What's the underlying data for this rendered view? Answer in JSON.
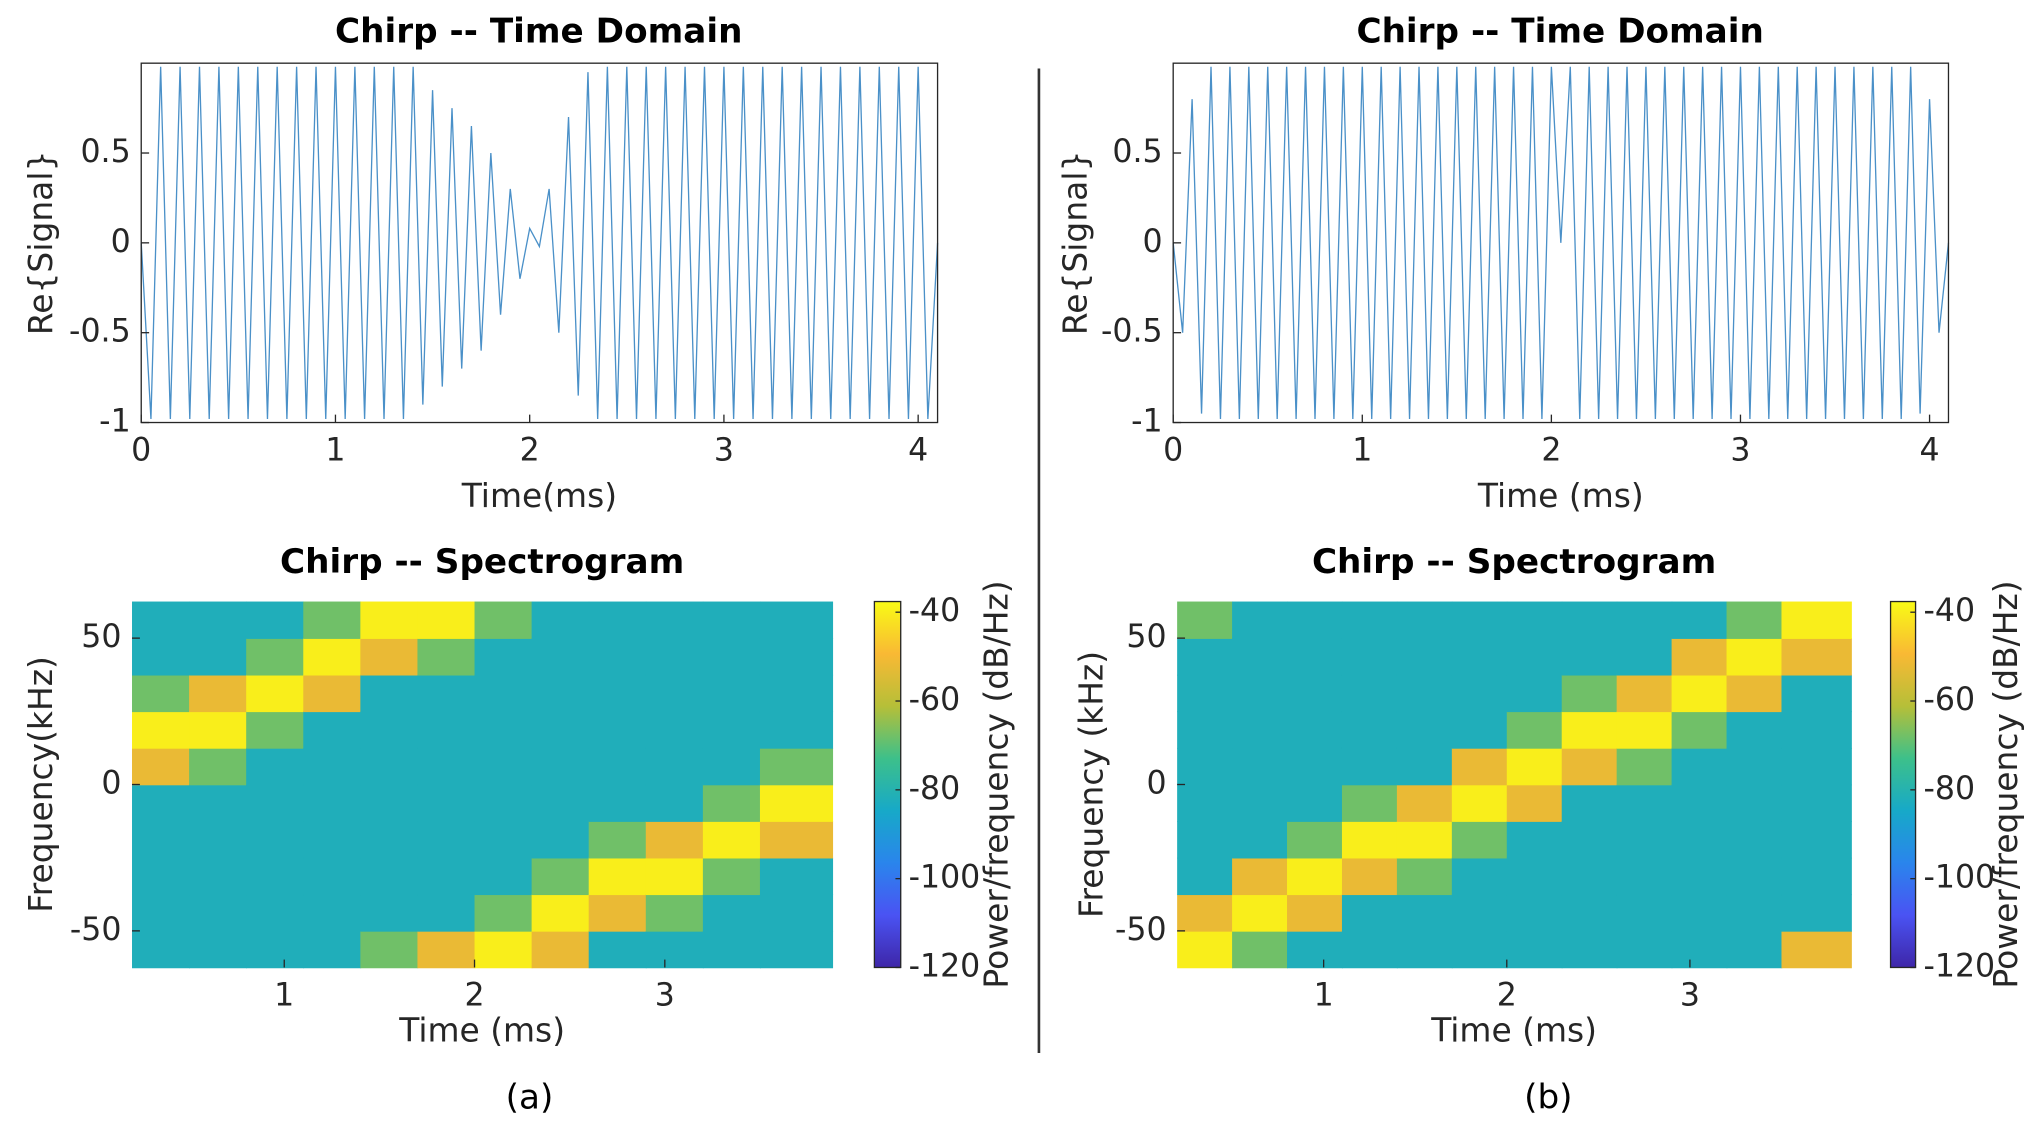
{
  "captions": [
    "(a)",
    "(b)"
  ],
  "chart_data": [
    {
      "type": "line",
      "title": "Chirp -- Time Domain",
      "x_label": "Time(ms)",
      "y_label": "Re{Signal}",
      "xlim": [
        0,
        4.1
      ],
      "ylim": [
        -1,
        1
      ],
      "xticks": [
        0,
        1,
        2,
        3,
        4
      ],
      "yticks": [
        -1,
        -0.5,
        0,
        0.5
      ],
      "x": [
        0,
        0.05,
        0.1,
        0.15,
        0.2,
        0.25,
        0.3,
        0.35,
        0.4,
        0.45,
        0.5,
        0.55,
        0.6,
        0.65,
        0.7,
        0.75,
        0.8,
        0.85,
        0.9,
        0.95,
        1,
        1.05,
        1.1,
        1.15,
        1.2,
        1.25,
        1.3,
        1.35,
        1.4,
        1.45,
        1.5,
        1.55,
        1.6,
        1.65,
        1.7,
        1.75,
        1.8,
        1.85,
        1.9,
        1.95,
        2,
        2.05,
        2.1,
        2.15,
        2.2,
        2.25,
        2.3,
        2.35,
        2.4,
        2.45,
        2.5,
        2.55,
        2.6,
        2.65,
        2.7,
        2.75,
        2.8,
        2.85,
        2.9,
        2.95,
        3,
        3.05,
        3.1,
        3.15,
        3.2,
        3.25,
        3.3,
        3.35,
        3.4,
        3.45,
        3.5,
        3.55,
        3.6,
        3.65,
        3.7,
        3.75,
        3.8,
        3.85,
        3.9,
        3.95,
        4,
        4.05,
        4.1
      ],
      "series": [
        {
          "color": "#4a90c8",
          "values": [
            0,
            -0.98,
            0.98,
            -0.98,
            0.98,
            -0.98,
            0.98,
            -0.98,
            0.98,
            -0.98,
            0.98,
            -0.98,
            0.98,
            -0.98,
            0.98,
            -0.98,
            0.98,
            -0.98,
            0.98,
            -0.98,
            0.98,
            -0.98,
            0.98,
            -0.98,
            0.98,
            -0.98,
            0.98,
            -0.98,
            0.98,
            -0.9,
            0.85,
            -0.8,
            0.75,
            -0.7,
            0.65,
            -0.6,
            0.5,
            -0.4,
            0.3,
            -0.2,
            0.08,
            -0.02,
            0.3,
            -0.5,
            0.7,
            -0.85,
            0.95,
            -0.98,
            0.98,
            -0.98,
            0.98,
            -0.98,
            0.98,
            -0.98,
            0.98,
            -0.98,
            0.98,
            -0.98,
            0.98,
            -0.98,
            0.98,
            -0.98,
            0.98,
            -0.98,
            0.98,
            -0.98,
            0.98,
            -0.98,
            0.98,
            -0.98,
            0.98,
            -0.98,
            0.98,
            -0.98,
            0.98,
            -0.98,
            0.98,
            -0.98,
            0.98,
            -0.98,
            0.98,
            -0.98,
            0
          ]
        }
      ]
    },
    {
      "type": "line",
      "title": "Chirp -- Time Domain",
      "x_label": "Time (ms)",
      "y_label": "Re{Signal}",
      "xlim": [
        0,
        4.1
      ],
      "ylim": [
        -1,
        1
      ],
      "xticks": [
        0,
        1,
        2,
        3,
        4
      ],
      "yticks": [
        -1,
        -0.5,
        0,
        0.5
      ],
      "x": [
        0,
        0.05,
        0.1,
        0.15,
        0.2,
        0.25,
        0.3,
        0.35,
        0.4,
        0.45,
        0.5,
        0.55,
        0.6,
        0.65,
        0.7,
        0.75,
        0.8,
        0.85,
        0.9,
        0.95,
        1,
        1.05,
        1.1,
        1.15,
        1.2,
        1.25,
        1.3,
        1.35,
        1.4,
        1.45,
        1.5,
        1.55,
        1.6,
        1.65,
        1.7,
        1.75,
        1.8,
        1.85,
        1.9,
        1.95,
        2,
        2.05,
        2.1,
        2.15,
        2.2,
        2.25,
        2.3,
        2.35,
        2.4,
        2.45,
        2.5,
        2.55,
        2.6,
        2.65,
        2.7,
        2.75,
        2.8,
        2.85,
        2.9,
        2.95,
        3,
        3.05,
        3.1,
        3.15,
        3.2,
        3.25,
        3.3,
        3.35,
        3.4,
        3.45,
        3.5,
        3.55,
        3.6,
        3.65,
        3.7,
        3.75,
        3.8,
        3.85,
        3.9,
        3.95,
        4,
        4.05,
        4.1
      ],
      "series": [
        {
          "color": "#4a90c8",
          "values": [
            0,
            -0.5,
            0.8,
            -0.95,
            0.98,
            -0.98,
            0.98,
            -0.98,
            0.98,
            -0.98,
            0.98,
            -0.98,
            0.98,
            -0.98,
            0.98,
            -0.98,
            0.98,
            -0.98,
            0.98,
            -0.98,
            0.98,
            -0.98,
            0.98,
            -0.98,
            0.98,
            -0.98,
            0.98,
            -0.98,
            0.98,
            -0.98,
            0.98,
            -0.98,
            0.98,
            -0.98,
            0.98,
            -0.98,
            0.98,
            -0.98,
            0.98,
            -0.98,
            0.98,
            0,
            0.98,
            -0.98,
            0.98,
            -0.98,
            0.98,
            -0.98,
            0.98,
            -0.98,
            0.98,
            -0.98,
            0.98,
            -0.98,
            0.98,
            -0.98,
            0.98,
            -0.98,
            0.98,
            -0.98,
            0.98,
            -0.98,
            0.98,
            -0.98,
            0.98,
            -0.98,
            0.98,
            -0.98,
            0.98,
            -0.98,
            0.98,
            -0.98,
            0.98,
            -0.98,
            0.98,
            -0.98,
            0.98,
            -0.98,
            0.98,
            -0.95,
            0.8,
            -0.5,
            0
          ]
        }
      ]
    },
    {
      "type": "heatmap",
      "title": "Chirp -- Spectrogram",
      "x_label": "Time (ms)",
      "y_label": "Frequency(kHz)",
      "colorbar_label": "Power/frequency (dB/Hz)",
      "xlim": [
        0.2,
        3.88
      ],
      "ylim": [
        -62.5,
        62.5
      ],
      "xticks": [
        1,
        2,
        3
      ],
      "yticks": [
        -50,
        0,
        50
      ],
      "clim": [
        -120,
        -37.6
      ],
      "cticks": [
        -120,
        -100,
        -80,
        -60,
        -40
      ],
      "colormap": [
        "#3e26a8",
        "#4a53f3",
        "#2a85ec",
        "#17a9c8",
        "#3dc08a",
        "#b6bf38",
        "#f9b934",
        "#f9fb15"
      ],
      "x": [
        0.35,
        0.65,
        0.95,
        1.25,
        1.55,
        1.85,
        2.15,
        2.45,
        2.75,
        3.05,
        3.35,
        3.65
      ],
      "y": [
        -56.25,
        -43.75,
        -31.25,
        -18.75,
        -6.25,
        6.25,
        18.75,
        31.25,
        43.75,
        56.25
      ],
      "z": [
        [
          -82,
          -82,
          -82,
          -82,
          -82,
          -52,
          -40,
          -68,
          -82,
          -82
        ],
        [
          -82,
          -82,
          -82,
          -82,
          -82,
          -68,
          -40,
          -52,
          -82,
          -82
        ],
        [
          -82,
          -82,
          -82,
          -82,
          -82,
          -82,
          -68,
          -40,
          -68,
          -82
        ],
        [
          -82,
          -82,
          -82,
          -82,
          -82,
          -82,
          -82,
          -52,
          -40,
          -68
        ],
        [
          -68,
          -82,
          -82,
          -82,
          -82,
          -82,
          -82,
          -82,
          -52,
          -40
        ],
        [
          -52,
          -82,
          -82,
          -82,
          -82,
          -82,
          -82,
          -82,
          -68,
          -40
        ],
        [
          -40,
          -68,
          -82,
          -82,
          -82,
          -82,
          -82,
          -82,
          -82,
          -68
        ],
        [
          -52,
          -40,
          -68,
          -82,
          -82,
          -82,
          -82,
          -82,
          -82,
          -82
        ],
        [
          -82,
          -52,
          -40,
          -68,
          -82,
          -82,
          -82,
          -82,
          -82,
          -82
        ],
        [
          -82,
          -68,
          -40,
          -52,
          -82,
          -82,
          -82,
          -82,
          -82,
          -82
        ],
        [
          -82,
          -82,
          -68,
          -40,
          -68,
          -82,
          -82,
          -82,
          -82,
          -82
        ],
        [
          -82,
          -82,
          -82,
          -52,
          -40,
          -68,
          -82,
          -82,
          -82,
          -82
        ]
      ]
    },
    {
      "type": "heatmap",
      "title": "Chirp -- Spectrogram",
      "x_label": "Time (ms)",
      "y_label": "Frequency (kHz)",
      "colorbar_label": "Power/frequency (dB/Hz)",
      "xlim": [
        0.2,
        3.88
      ],
      "ylim": [
        -62.5,
        62.5
      ],
      "xticks": [
        1,
        2,
        3
      ],
      "yticks": [
        -50,
        0,
        50
      ],
      "clim": [
        -120,
        -37.6
      ],
      "cticks": [
        -120,
        -100,
        -80,
        -60,
        -40
      ],
      "colormap": [
        "#3e26a8",
        "#4a53f3",
        "#2a85ec",
        "#17a9c8",
        "#3dc08a",
        "#b6bf38",
        "#f9b934",
        "#f9fb15"
      ],
      "x": [
        0.35,
        0.65,
        0.95,
        1.25,
        1.55,
        1.85,
        2.15,
        2.45,
        2.75,
        3.05,
        3.35,
        3.65
      ],
      "y": [
        -56.25,
        -43.75,
        -31.25,
        -18.75,
        -6.25,
        6.25,
        18.75,
        31.25,
        43.75,
        56.25
      ],
      "z": [
        [
          -40,
          -52,
          -82,
          -82,
          -82,
          -82,
          -82,
          -82,
          -82,
          -68
        ],
        [
          -68,
          -40,
          -52,
          -82,
          -82,
          -82,
          -82,
          -82,
          -82,
          -82
        ],
        [
          -82,
          -52,
          -40,
          -68,
          -82,
          -82,
          -82,
          -82,
          -82,
          -82
        ],
        [
          -82,
          -82,
          -52,
          -40,
          -68,
          -82,
          -82,
          -82,
          -82,
          -82
        ],
        [
          -82,
          -82,
          -68,
          -40,
          -52,
          -82,
          -82,
          -82,
          -82,
          -82
        ],
        [
          -82,
          -82,
          -82,
          -68,
          -40,
          -52,
          -82,
          -82,
          -82,
          -82
        ],
        [
          -82,
          -82,
          -82,
          -82,
          -52,
          -40,
          -68,
          -82,
          -82,
          -82
        ],
        [
          -82,
          -82,
          -82,
          -82,
          -82,
          -52,
          -40,
          -68,
          -82,
          -82
        ],
        [
          -82,
          -82,
          -82,
          -82,
          -82,
          -68,
          -40,
          -52,
          -82,
          -82
        ],
        [
          -82,
          -82,
          -82,
          -82,
          -82,
          -82,
          -68,
          -40,
          -52,
          -82
        ],
        [
          -82,
          -82,
          -82,
          -82,
          -82,
          -82,
          -82,
          -52,
          -40,
          -68
        ],
        [
          -52,
          -82,
          -82,
          -82,
          -82,
          -82,
          -82,
          -82,
          -52,
          -40
        ]
      ]
    }
  ]
}
